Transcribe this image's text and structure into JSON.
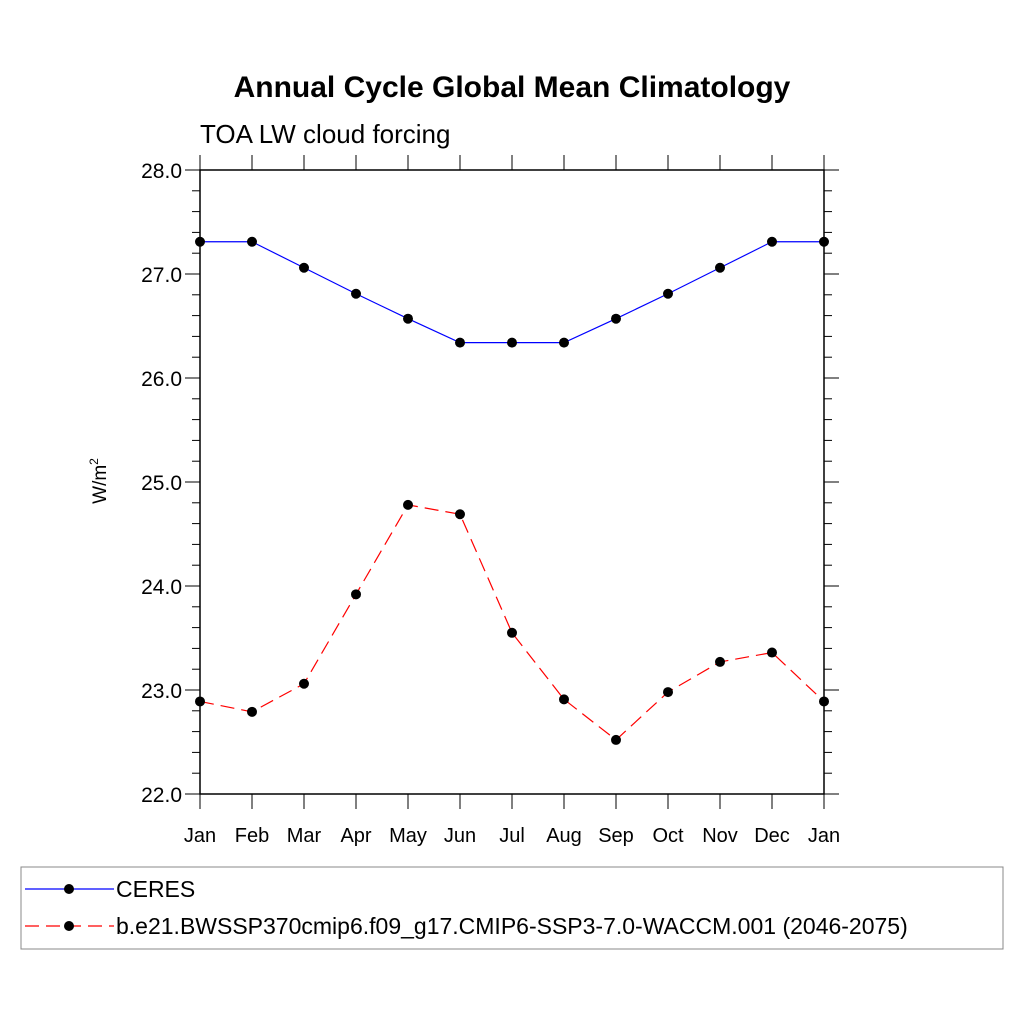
{
  "chart_data": {
    "type": "line",
    "title": "Annual Cycle Global Mean Climatology",
    "subtitle": "TOA LW cloud forcing",
    "xlabel": "",
    "ylabel": "W/m",
    "ylabel_superscript": "2",
    "categories": [
      "Jan",
      "Feb",
      "Mar",
      "Apr",
      "May",
      "Jun",
      "Jul",
      "Aug",
      "Sep",
      "Oct",
      "Nov",
      "Dec",
      "Jan"
    ],
    "ylim": [
      22.0,
      28.0
    ],
    "yticks": [
      "22.0",
      "23.0",
      "24.0",
      "25.0",
      "26.0",
      "27.0",
      "28.0"
    ],
    "grid": false,
    "legend_position": "bottom",
    "series": [
      {
        "name": "CERES",
        "color": "#0000ff",
        "line_style": "solid",
        "marker": "filled-circle",
        "values": [
          27.31,
          27.31,
          27.06,
          26.81,
          26.57,
          26.34,
          26.34,
          26.34,
          26.57,
          26.81,
          27.06,
          27.31,
          27.31
        ]
      },
      {
        "name": "b.e21.BWSSP370cmip6.f09_g17.CMIP6-SSP3-7.0-WACCM.001 (2046-2075)",
        "color": "#ff0000",
        "line_style": "dashed",
        "marker": "filled-circle",
        "values": [
          22.89,
          22.79,
          23.06,
          23.92,
          24.78,
          24.69,
          23.55,
          22.91,
          22.52,
          22.98,
          23.27,
          23.36,
          22.89
        ]
      }
    ]
  }
}
